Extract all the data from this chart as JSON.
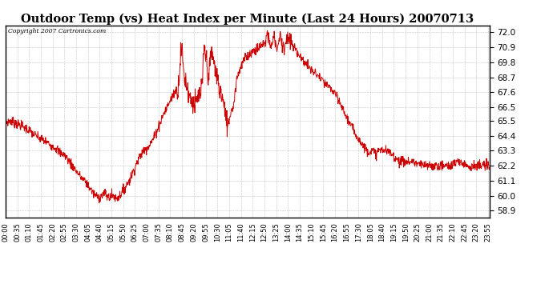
{
  "title": "Outdoor Temp (vs) Heat Index per Minute (Last 24 Hours) 20070713",
  "copyright": "Copyright 2007 Cartronics.com",
  "line_color": "#cc0000",
  "bg_color": "#ffffff",
  "plot_bg_color": "#ffffff",
  "grid_color": "#aaaaaa",
  "yticks": [
    58.9,
    60.0,
    61.1,
    62.2,
    63.3,
    64.4,
    65.5,
    66.5,
    67.6,
    68.7,
    69.8,
    70.9,
    72.0
  ],
  "ylim": [
    58.4,
    72.5
  ],
  "xtick_labels": [
    "00:00",
    "00:35",
    "01:10",
    "01:45",
    "02:20",
    "02:55",
    "03:30",
    "04:05",
    "04:40",
    "05:15",
    "05:50",
    "06:25",
    "07:00",
    "07:35",
    "08:10",
    "08:45",
    "09:20",
    "09:55",
    "10:30",
    "11:05",
    "11:40",
    "12:15",
    "12:50",
    "13:25",
    "14:00",
    "14:35",
    "15:10",
    "15:45",
    "16:20",
    "16:55",
    "17:30",
    "18:05",
    "18:40",
    "19:15",
    "19:50",
    "20:25",
    "21:00",
    "21:35",
    "22:10",
    "22:45",
    "23:20",
    "23:55"
  ],
  "keypoints": [
    [
      0,
      65.4
    ],
    [
      15,
      65.5
    ],
    [
      25,
      65.4
    ],
    [
      35,
      65.3
    ],
    [
      50,
      65.1
    ],
    [
      70,
      64.8
    ],
    [
      90,
      64.4
    ],
    [
      110,
      64.1
    ],
    [
      130,
      63.8
    ],
    [
      150,
      63.5
    ],
    [
      160,
      63.2
    ],
    [
      175,
      63.0
    ],
    [
      190,
      62.5
    ],
    [
      205,
      62.0
    ],
    [
      220,
      61.5
    ],
    [
      230,
      61.2
    ],
    [
      240,
      61.0
    ],
    [
      250,
      60.6
    ],
    [
      255,
      60.4
    ],
    [
      260,
      60.2
    ],
    [
      265,
      60.1
    ],
    [
      270,
      60.0
    ],
    [
      275,
      59.9
    ],
    [
      280,
      59.9
    ],
    [
      285,
      60.0
    ],
    [
      290,
      60.1
    ],
    [
      295,
      60.2
    ],
    [
      300,
      60.0
    ],
    [
      305,
      59.9
    ],
    [
      310,
      59.9
    ],
    [
      315,
      60.0
    ],
    [
      320,
      60.0
    ],
    [
      325,
      59.9
    ],
    [
      330,
      59.8
    ],
    [
      335,
      59.9
    ],
    [
      340,
      60.0
    ],
    [
      345,
      60.2
    ],
    [
      350,
      60.4
    ],
    [
      360,
      60.8
    ],
    [
      370,
      61.2
    ],
    [
      380,
      61.8
    ],
    [
      390,
      62.4
    ],
    [
      400,
      62.9
    ],
    [
      410,
      63.3
    ],
    [
      420,
      63.5
    ],
    [
      430,
      63.8
    ],
    [
      440,
      64.2
    ],
    [
      450,
      64.8
    ],
    [
      460,
      65.4
    ],
    [
      470,
      66.0
    ],
    [
      480,
      66.5
    ],
    [
      490,
      67.0
    ],
    [
      500,
      67.5
    ],
    [
      505,
      67.7
    ],
    [
      510,
      67.8
    ],
    [
      515,
      68.2
    ],
    [
      518,
      69.5
    ],
    [
      521,
      70.5
    ],
    [
      524,
      70.8
    ],
    [
      527,
      70.0
    ],
    [
      530,
      69.0
    ],
    [
      535,
      68.5
    ],
    [
      540,
      68.0
    ],
    [
      543,
      67.8
    ],
    [
      546,
      67.4
    ],
    [
      550,
      67.2
    ],
    [
      555,
      67.0
    ],
    [
      560,
      66.8
    ],
    [
      565,
      66.7
    ],
    [
      570,
      67.0
    ],
    [
      575,
      67.3
    ],
    [
      580,
      67.5
    ],
    [
      583,
      67.8
    ],
    [
      586,
      68.5
    ],
    [
      589,
      70.2
    ],
    [
      592,
      70.8
    ],
    [
      595,
      70.3
    ],
    [
      598,
      69.8
    ],
    [
      601,
      69.2
    ],
    [
      604,
      68.8
    ],
    [
      607,
      69.5
    ],
    [
      610,
      70.0
    ],
    [
      613,
      70.5
    ],
    [
      616,
      70.2
    ],
    [
      619,
      69.8
    ],
    [
      622,
      69.5
    ],
    [
      625,
      69.2
    ],
    [
      628,
      68.8
    ],
    [
      631,
      68.5
    ],
    [
      634,
      68.0
    ],
    [
      637,
      67.8
    ],
    [
      640,
      67.5
    ],
    [
      645,
      67.2
    ],
    [
      650,
      66.5
    ],
    [
      655,
      65.5
    ],
    [
      660,
      65.3
    ],
    [
      665,
      65.5
    ],
    [
      670,
      66.2
    ],
    [
      675,
      66.5
    ],
    [
      678,
      66.6
    ],
    [
      681,
      67.2
    ],
    [
      684,
      68.0
    ],
    [
      687,
      68.5
    ],
    [
      690,
      68.8
    ],
    [
      700,
      69.5
    ],
    [
      710,
      70.0
    ],
    [
      720,
      70.3
    ],
    [
      730,
      70.5
    ],
    [
      740,
      70.7
    ],
    [
      750,
      70.8
    ],
    [
      760,
      71.0
    ],
    [
      770,
      71.2
    ],
    [
      775,
      71.5
    ],
    [
      778,
      72.0
    ],
    [
      781,
      71.5
    ],
    [
      784,
      71.8
    ],
    [
      787,
      71.2
    ],
    [
      790,
      70.8
    ],
    [
      793,
      71.2
    ],
    [
      796,
      71.5
    ],
    [
      799,
      71.8
    ],
    [
      802,
      71.4
    ],
    [
      805,
      71.0
    ],
    [
      808,
      70.8
    ],
    [
      811,
      71.2
    ],
    [
      814,
      71.5
    ],
    [
      817,
      71.8
    ],
    [
      820,
      71.5
    ],
    [
      823,
      71.2
    ],
    [
      826,
      71.0
    ],
    [
      829,
      70.8
    ],
    [
      832,
      71.2
    ],
    [
      835,
      71.5
    ],
    [
      840,
      71.5
    ],
    [
      850,
      71.2
    ],
    [
      860,
      70.8
    ],
    [
      870,
      70.5
    ],
    [
      875,
      70.3
    ],
    [
      880,
      70.0
    ],
    [
      890,
      69.8
    ],
    [
      900,
      69.5
    ],
    [
      910,
      69.2
    ],
    [
      920,
      69.0
    ],
    [
      930,
      68.8
    ],
    [
      940,
      68.5
    ],
    [
      950,
      68.2
    ],
    [
      960,
      68.0
    ],
    [
      970,
      67.8
    ],
    [
      980,
      67.5
    ],
    [
      985,
      67.2
    ],
    [
      990,
      67.0
    ],
    [
      995,
      66.8
    ],
    [
      1000,
      66.5
    ],
    [
      1010,
      66.0
    ],
    [
      1020,
      65.5
    ],
    [
      1030,
      65.0
    ],
    [
      1040,
      64.6
    ],
    [
      1050,
      64.2
    ],
    [
      1060,
      63.8
    ],
    [
      1070,
      63.5
    ],
    [
      1075,
      63.3
    ],
    [
      1080,
      63.3
    ],
    [
      1090,
      63.3
    ],
    [
      1095,
      63.2
    ],
    [
      1100,
      63.1
    ],
    [
      1110,
      63.3
    ],
    [
      1120,
      63.4
    ],
    [
      1130,
      63.3
    ],
    [
      1140,
      63.2
    ],
    [
      1150,
      63.0
    ],
    [
      1160,
      62.8
    ],
    [
      1170,
      62.6
    ],
    [
      1180,
      62.5
    ],
    [
      1190,
      62.5
    ],
    [
      1200,
      62.5
    ],
    [
      1210,
      62.5
    ],
    [
      1220,
      62.4
    ],
    [
      1230,
      62.3
    ],
    [
      1240,
      62.2
    ],
    [
      1250,
      62.2
    ],
    [
      1260,
      62.2
    ],
    [
      1270,
      62.2
    ],
    [
      1280,
      62.2
    ],
    [
      1290,
      62.2
    ],
    [
      1300,
      62.2
    ],
    [
      1310,
      62.2
    ],
    [
      1320,
      62.2
    ],
    [
      1330,
      62.3
    ],
    [
      1340,
      62.4
    ],
    [
      1350,
      62.5
    ],
    [
      1360,
      62.4
    ],
    [
      1370,
      62.3
    ],
    [
      1380,
      62.2
    ],
    [
      1390,
      62.2
    ],
    [
      1400,
      62.2
    ],
    [
      1410,
      62.2
    ],
    [
      1420,
      62.2
    ],
    [
      1435,
      62.2
    ],
    [
      1439,
      62.2
    ]
  ]
}
